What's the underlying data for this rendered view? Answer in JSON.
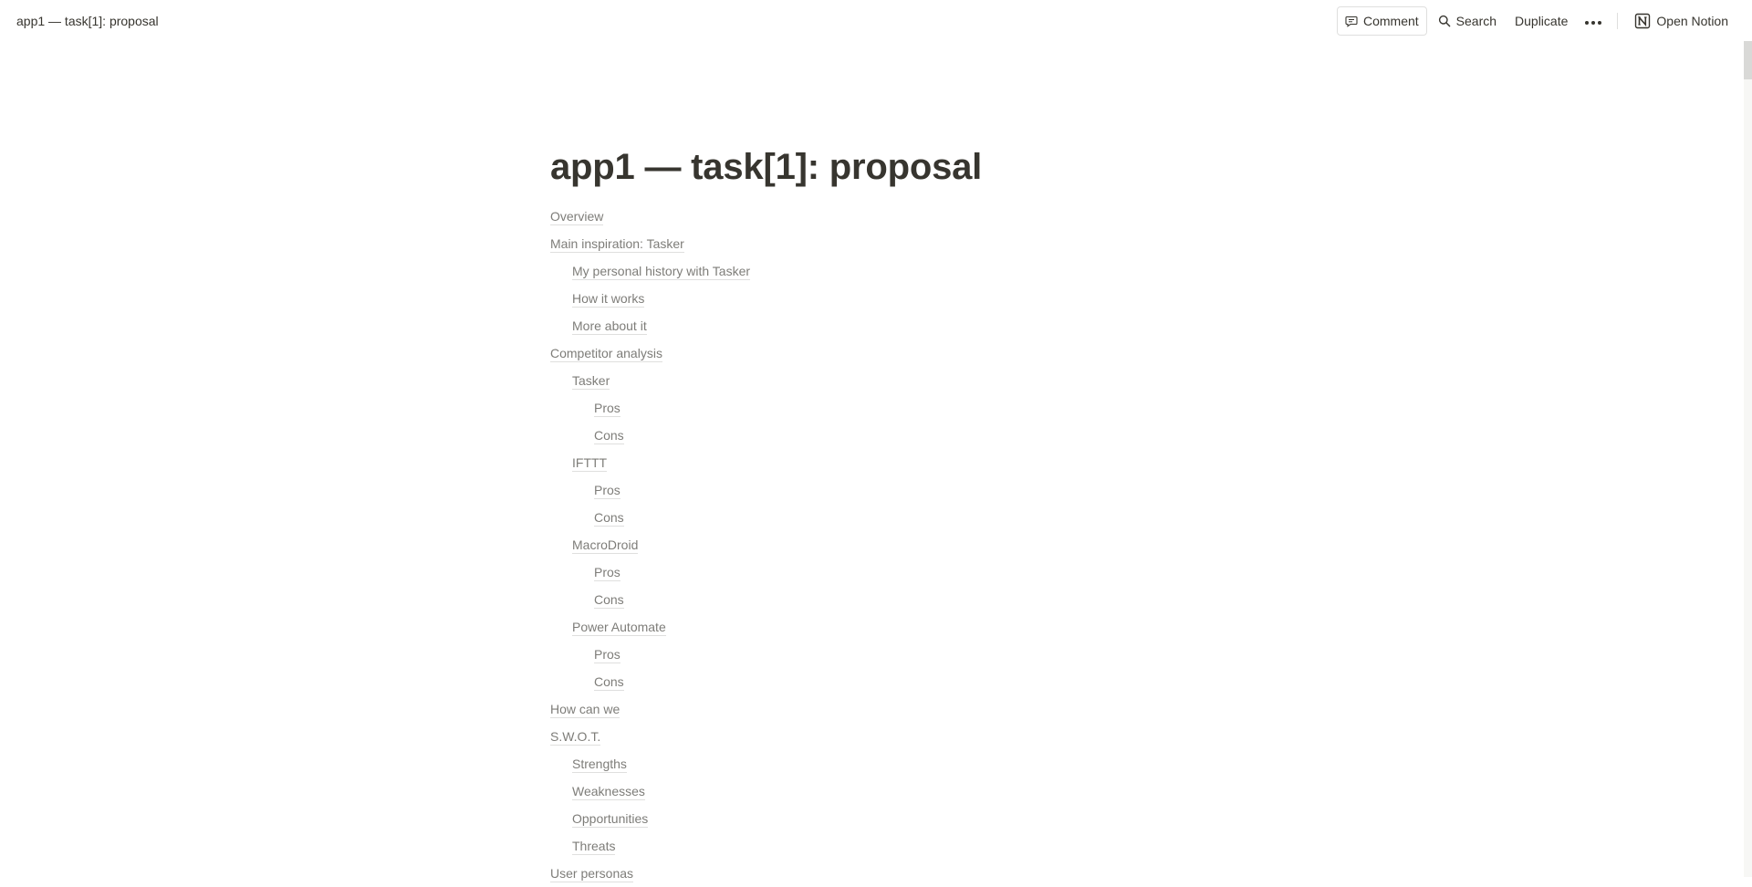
{
  "header": {
    "breadcrumb": "app1 — task[1]: proposal",
    "comment_label": "Comment",
    "search_label": "Search",
    "duplicate_label": "Duplicate",
    "open_notion_label": "Open Notion"
  },
  "page": {
    "title": "app1 — task[1]: proposal"
  },
  "toc": [
    {
      "label": "Overview",
      "level": 1
    },
    {
      "label": "Main inspiration: Tasker",
      "level": 1
    },
    {
      "label": "My personal history with Tasker",
      "level": 2
    },
    {
      "label": "How it works",
      "level": 2
    },
    {
      "label": "More about it",
      "level": 2
    },
    {
      "label": "Competitor analysis",
      "level": 1
    },
    {
      "label": "Tasker",
      "level": 2
    },
    {
      "label": "Pros",
      "level": 3
    },
    {
      "label": "Cons",
      "level": 3
    },
    {
      "label": "IFTTT",
      "level": 2
    },
    {
      "label": "Pros",
      "level": 3
    },
    {
      "label": "Cons",
      "level": 3
    },
    {
      "label": "MacroDroid",
      "level": 2
    },
    {
      "label": "Pros",
      "level": 3
    },
    {
      "label": "Cons",
      "level": 3
    },
    {
      "label": "Power Automate",
      "level": 2
    },
    {
      "label": "Pros",
      "level": 3
    },
    {
      "label": "Cons",
      "level": 3
    },
    {
      "label": "How can we",
      "level": 1
    },
    {
      "label": "S.W.O.T.",
      "level": 1
    },
    {
      "label": "Strengths",
      "level": 2
    },
    {
      "label": "Weaknesses",
      "level": 2
    },
    {
      "label": "Opportunities",
      "level": 2
    },
    {
      "label": "Threats",
      "level": 2
    },
    {
      "label": "User personas",
      "level": 1
    }
  ]
}
